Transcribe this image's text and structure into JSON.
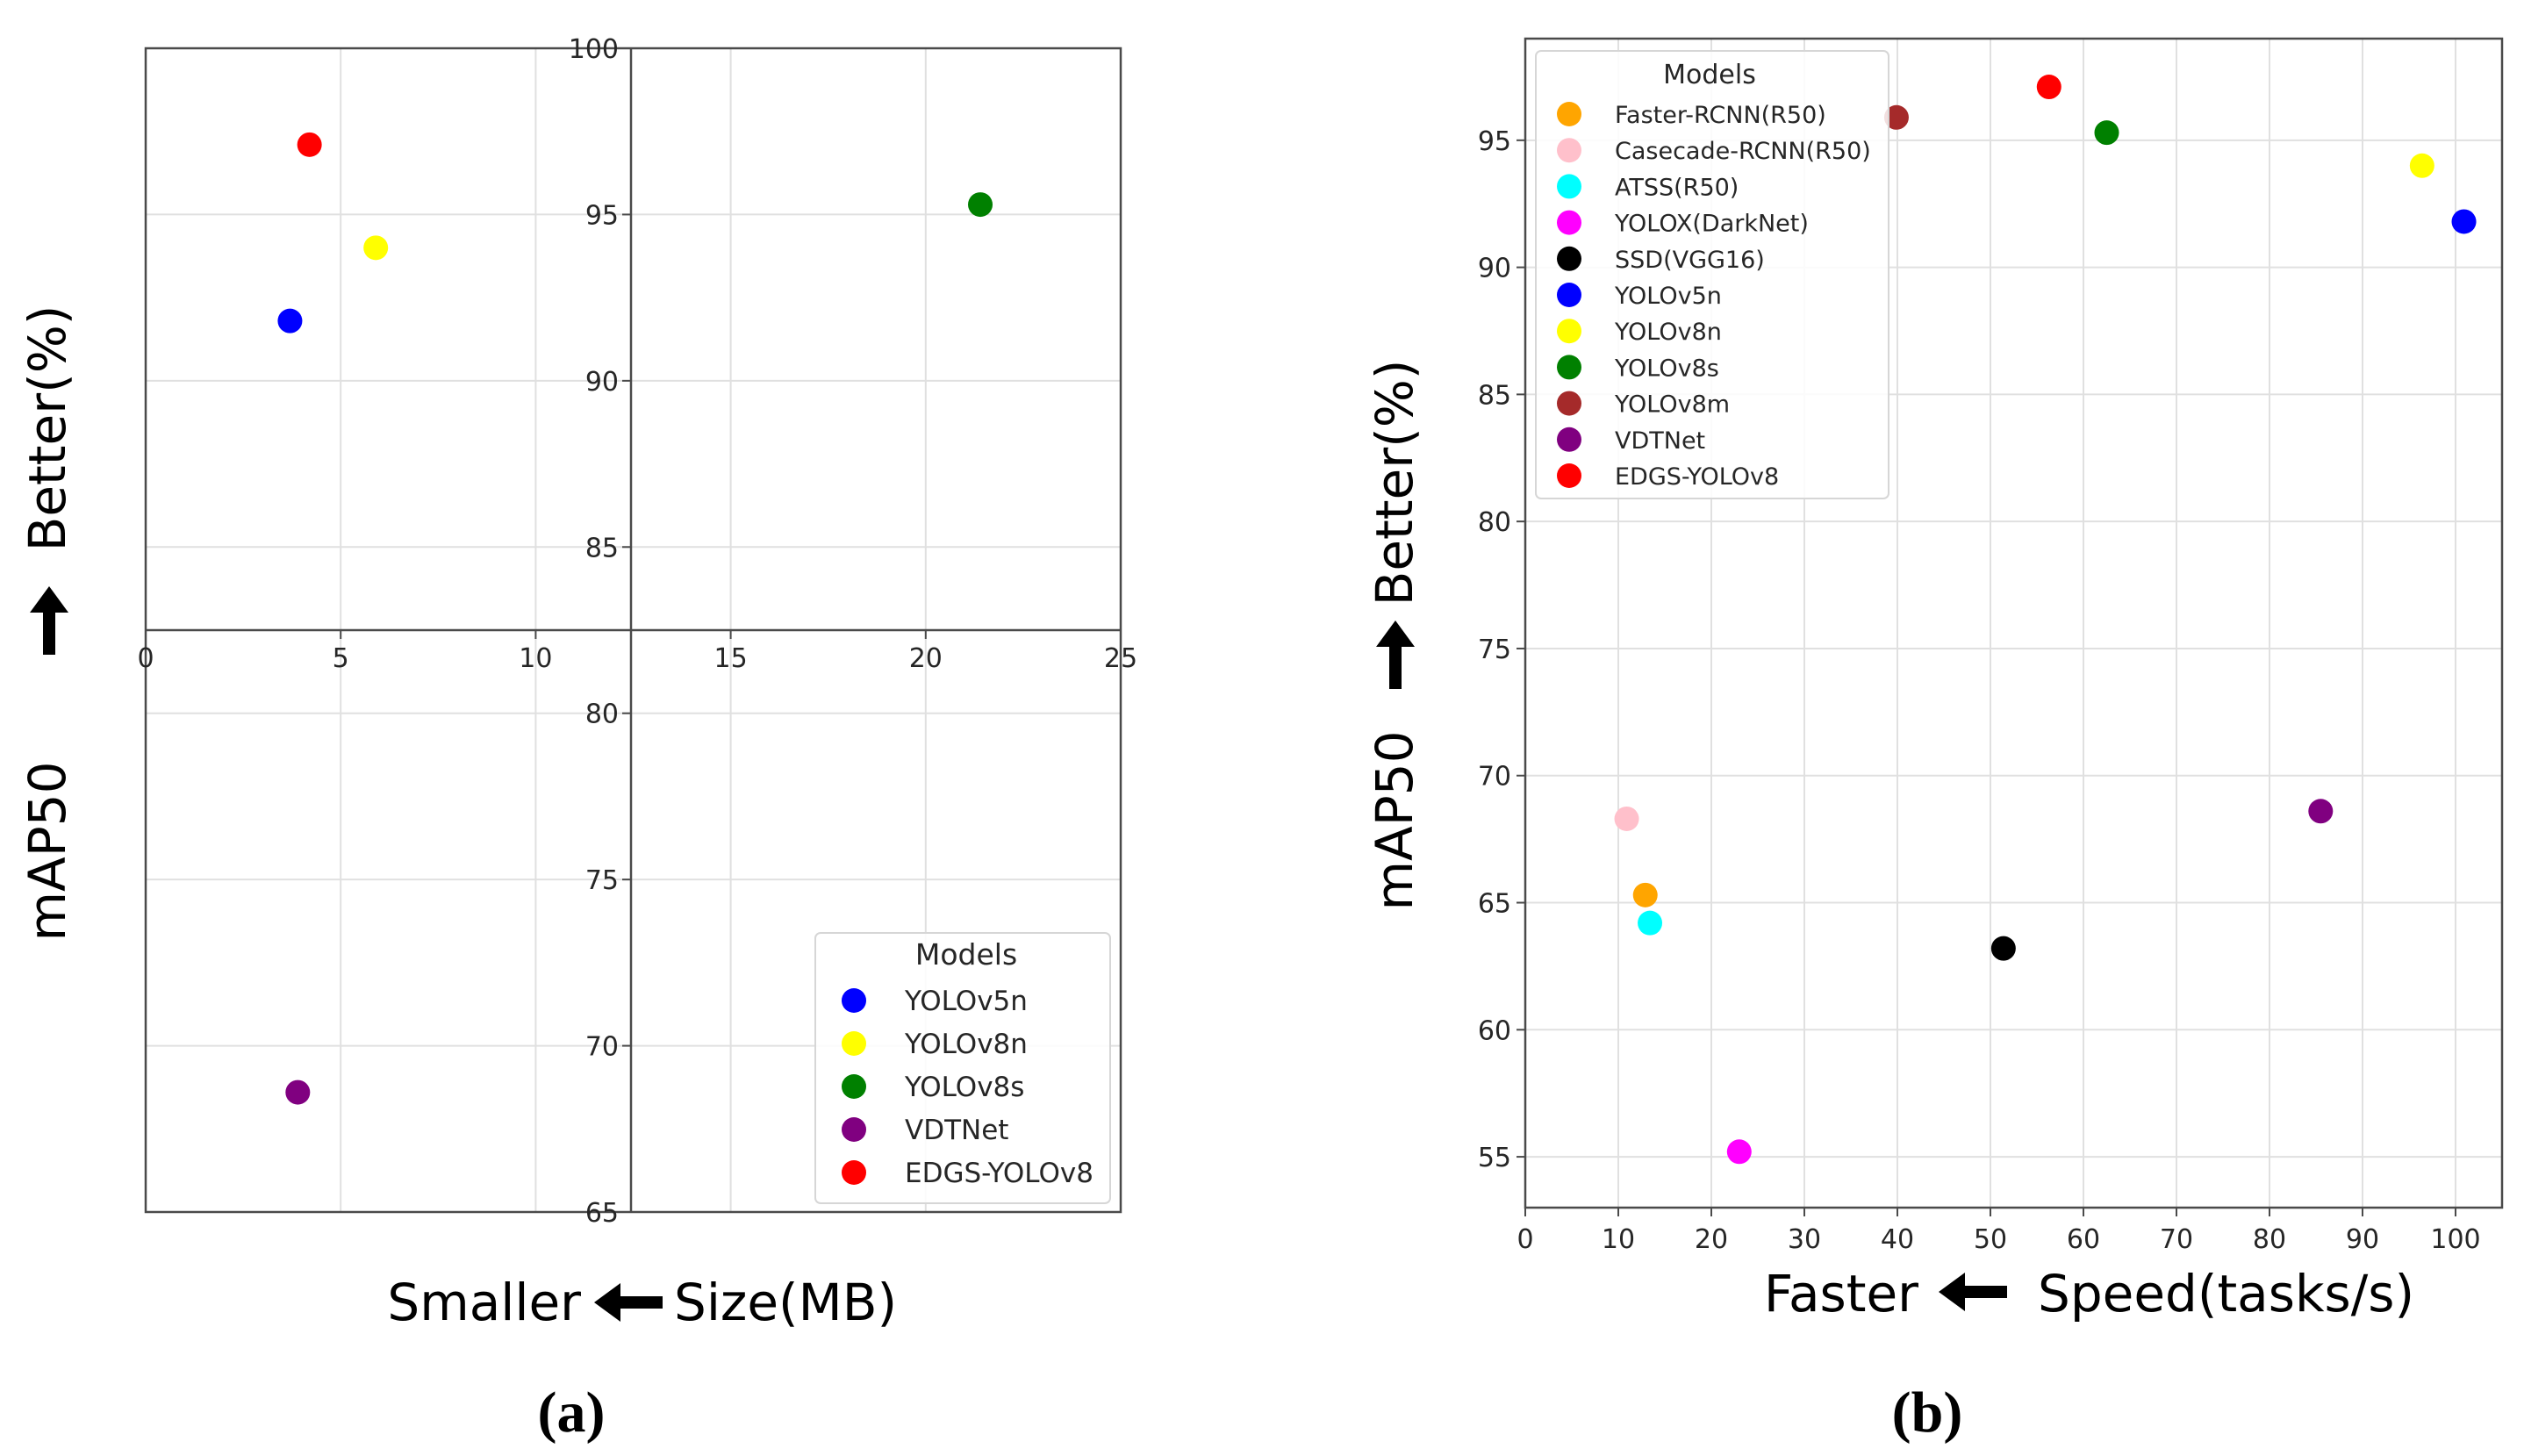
{
  "chart_data": [
    {
      "type": "scatter",
      "xlabel_left": "Smaller",
      "xlabel_right": "Size(MB)",
      "ylabel_left": "mAP50",
      "ylabel_right": "Better(%)",
      "xlim": [
        0,
        25
      ],
      "ylim": [
        65,
        100
      ],
      "y_break": 82.5,
      "x_ticks": [
        0,
        5,
        10,
        15,
        20,
        25
      ],
      "y_ticks": [
        65,
        70,
        75,
        80,
        85,
        90,
        95,
        100
      ],
      "grid": true,
      "legend_title": "Models",
      "legend_position": "bottom-right",
      "series": [
        {
          "name": "YOLOv5n",
          "color": "#0000ff",
          "x": 3.7,
          "y": 91.8
        },
        {
          "name": "YOLOv8n",
          "color": "#ffff00",
          "x": 5.9,
          "y": 94.0
        },
        {
          "name": "YOLOv8s",
          "color": "#008000",
          "x": 21.4,
          "y": 95.3
        },
        {
          "name": "VDTNet",
          "color": "#800080",
          "x": 3.9,
          "y": 68.6
        },
        {
          "name": "EDGS-YOLOv8",
          "color": "#ff0000",
          "x": 4.2,
          "y": 97.1
        }
      ],
      "panel_label": "(a)"
    },
    {
      "type": "scatter",
      "xlabel_left": "Faster",
      "xlabel_right": "Speed(tasks/s)",
      "ylabel_left": "mAP50",
      "ylabel_right": "Better(%)",
      "xlim": [
        0,
        105
      ],
      "ylim": [
        53,
        99
      ],
      "x_ticks": [
        0,
        10,
        20,
        30,
        40,
        50,
        60,
        70,
        80,
        90,
        100
      ],
      "y_ticks": [
        55,
        60,
        65,
        70,
        75,
        80,
        85,
        90,
        95
      ],
      "grid": true,
      "legend_title": "Models",
      "legend_position": "top-left",
      "series": [
        {
          "name": "Faster-RCNN(R50)",
          "color": "#ffa500",
          "x": 12.9,
          "y": 65.3
        },
        {
          "name": "Casecade-RCNN(R50)",
          "color": "#ffc0cb",
          "x": 10.9,
          "y": 68.3
        },
        {
          "name": "ATSS(R50)",
          "color": "#00ffff",
          "x": 13.4,
          "y": 64.2
        },
        {
          "name": "YOLOX(DarkNet)",
          "color": "#ff00ff",
          "x": 23.0,
          "y": 55.2
        },
        {
          "name": "SSD(VGG16)",
          "color": "#000000",
          "x": 51.4,
          "y": 63.2
        },
        {
          "name": "YOLOv5n",
          "color": "#0000ff",
          "x": 100.9,
          "y": 91.8
        },
        {
          "name": "YOLOv8n",
          "color": "#ffff00",
          "x": 96.4,
          "y": 94.0
        },
        {
          "name": "YOLOv8s",
          "color": "#008000",
          "x": 62.5,
          "y": 95.3
        },
        {
          "name": "YOLOv8m",
          "color": "#a52a2a",
          "x": 39.9,
          "y": 95.9
        },
        {
          "name": "VDTNet",
          "color": "#800080",
          "x": 85.5,
          "y": 68.6
        },
        {
          "name": "EDGS-YOLOv8",
          "color": "#ff0000",
          "x": 56.3,
          "y": 97.1
        }
      ],
      "panel_label": "(b)"
    }
  ]
}
